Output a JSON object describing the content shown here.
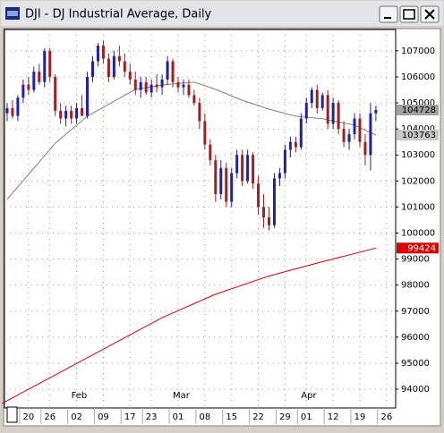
{
  "window_title": "DJI - DJ Industrial Average, Daily",
  "chart_data": {
    "type": "candlestick",
    "up_color": "#2020b0",
    "down_color": "#a02020",
    "ylim": [
      93280,
      107820
    ],
    "yticks": [
      94000,
      95000,
      96000,
      97000,
      98000,
      99000,
      100000,
      101000,
      102000,
      103000,
      104000,
      105000,
      106000,
      107000
    ],
    "grid": true,
    "categories": [
      null,
      null,
      null,
      null,
      null,
      "20",
      null,
      null,
      null,
      "26",
      null,
      null,
      null,
      null,
      "02",
      null,
      null,
      null,
      null,
      "09",
      null,
      null,
      null,
      null,
      "17",
      null,
      null,
      null,
      "23",
      null,
      null,
      null,
      null,
      "01",
      null,
      null,
      null,
      null,
      "08",
      null,
      null,
      null,
      null,
      "15",
      null,
      null,
      null,
      null,
      "22",
      null,
      null,
      null,
      null,
      "29",
      null,
      null,
      null,
      "01",
      null,
      null,
      null,
      null,
      "12",
      null,
      null,
      null,
      null,
      "19",
      null,
      null,
      null,
      null,
      "26"
    ],
    "month_ticks": [
      {
        "value": 14,
        "label": "Feb"
      },
      {
        "value": 33,
        "label": "Mar"
      },
      {
        "value": 57,
        "label": "Apr"
      }
    ],
    "open": [
      null,
      104600,
      104800,
      104500,
      105200,
      105700,
      105500,
      106200,
      105800,
      107000,
      106000,
      104700,
      104400,
      104700,
      104400,
      104800,
      104500,
      106000,
      106600,
      107200,
      106700,
      106000,
      106800,
      106600,
      106200,
      105900,
      105500,
      105800,
      105400,
      105700,
      105600,
      105900,
      106600,
      105800,
      105600,
      105700,
      105300,
      105000,
      104300,
      103400,
      102800,
      101500,
      102500,
      101200,
      102300,
      103000,
      102000,
      103000,
      101900,
      101000,
      100600,
      100300,
      102100,
      102300,
      103200,
      103500,
      103300,
      104400,
      105000,
      105500,
      104800,
      105300,
      104200,
      105000,
      104000,
      103500,
      103800,
      104400,
      103500,
      103000,
      104600,
      null,
      null
    ],
    "high": [
      null,
      105000,
      105100,
      105300,
      105900,
      106000,
      106400,
      106500,
      107100,
      107100,
      106100,
      105000,
      104900,
      104900,
      105000,
      105300,
      106200,
      106800,
      107300,
      107400,
      106900,
      107000,
      107200,
      106900,
      106500,
      106200,
      106000,
      106000,
      105900,
      106100,
      106100,
      106800,
      106700,
      106000,
      105900,
      105900,
      105500,
      105200,
      104600,
      103600,
      103000,
      102800,
      102700,
      102500,
      103200,
      103200,
      103200,
      103100,
      102200,
      101500,
      101000,
      102300,
      102500,
      103400,
      103700,
      103700,
      104600,
      105200,
      105600,
      105700,
      105400,
      105500,
      105200,
      105100,
      104300,
      104000,
      104600,
      104600,
      103800,
      105000,
      104900,
      null,
      null
    ],
    "low": [
      null,
      104300,
      104400,
      104300,
      105000,
      105300,
      105400,
      105700,
      105600,
      105800,
      104500,
      104200,
      104100,
      104200,
      104200,
      104500,
      104400,
      105800,
      106400,
      106500,
      105800,
      105900,
      106400,
      106000,
      105700,
      105300,
      105200,
      105300,
      105200,
      105400,
      105300,
      105700,
      105600,
      105400,
      105300,
      105200,
      104900,
      104000,
      103200,
      102600,
      101200,
      101300,
      101000,
      101000,
      102100,
      101800,
      101900,
      101700,
      100700,
      100200,
      100100,
      100200,
      101800,
      102100,
      102900,
      103100,
      103200,
      104200,
      104800,
      104600,
      104700,
      104000,
      104000,
      103800,
      103300,
      103200,
      103600,
      103300,
      102600,
      102400,
      104300,
      null,
      null
    ],
    "close": [
      null,
      104800,
      104500,
      105200,
      105700,
      105500,
      106200,
      105800,
      107000,
      106000,
      104700,
      104400,
      104700,
      104400,
      104800,
      104500,
      106000,
      106600,
      107200,
      106700,
      106000,
      106800,
      106600,
      106200,
      105900,
      105500,
      105800,
      105400,
      105700,
      105600,
      105900,
      106600,
      105800,
      105600,
      105700,
      105300,
      105000,
      104300,
      103400,
      102800,
      101500,
      102500,
      101200,
      102300,
      103000,
      102000,
      103000,
      101900,
      101000,
      100600,
      100300,
      102100,
      102300,
      103200,
      103500,
      103300,
      104400,
      105000,
      105500,
      104800,
      105300,
      104200,
      105000,
      104000,
      103500,
      103800,
      104400,
      103500,
      103000,
      104600,
      104728,
      null,
      null
    ],
    "series": [
      {
        "color": "#808080",
        "x": [
          1,
          5,
          10,
          16,
          25,
          30,
          36,
          40,
          45,
          50,
          55,
          60,
          66,
          70
        ],
        "values": [
          101300,
          102250,
          103450,
          104490,
          105520,
          105690,
          105800,
          105520,
          105100,
          104760,
          104490,
          104390,
          104150,
          103763
        ],
        "label_bg": "#c8c8c8",
        "label_fg": "#000000"
      },
      {
        "color": "#e00000",
        "x": [
          0,
          10,
          20,
          30,
          40,
          50,
          60,
          70
        ],
        "values": [
          93450,
          94550,
          95650,
          96750,
          97650,
          98350,
          98900,
          99424
        ],
        "label_bg": "#e00000",
        "label_fg": "#ffffff"
      }
    ],
    "last_bg": "#a0a0a0",
    "last_fg": "#000000"
  }
}
